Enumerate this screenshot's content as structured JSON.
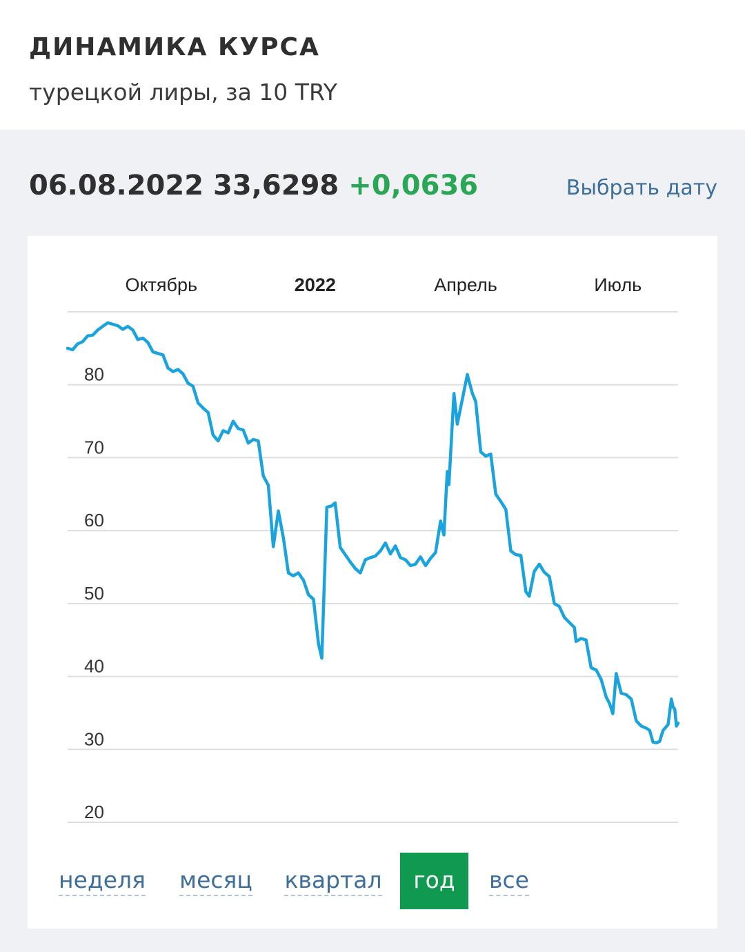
{
  "header": {
    "title": "ДИНАМИКА КУРСА",
    "subtitle": "турецкой лиры, за 10 TRY"
  },
  "rate": {
    "date": "06.08.2022",
    "value": "33,6298",
    "change": "+0,0636",
    "pick_date_label": "Выбрать дату"
  },
  "periods": {
    "week": "неделя",
    "month": "месяц",
    "quarter": "квартал",
    "year": "год",
    "all": "все",
    "selected": "год"
  },
  "colors": {
    "line": "#1aa3dc",
    "grid": "#dedede",
    "accent_green": "#0f9a4f",
    "change_green": "#2aa657",
    "link_blue": "#3d6e9c"
  },
  "chart_data": {
    "type": "line",
    "title": "",
    "xlabel": "",
    "ylabel": "",
    "ylim": [
      20,
      90
    ],
    "grid": true,
    "y_ticks": [
      20,
      30,
      40,
      50,
      60,
      70,
      80
    ],
    "x_ticks": [
      {
        "label": "Октябрь",
        "date": "2021-10-01",
        "bold": false
      },
      {
        "label": "2022",
        "date": "2022-01-01",
        "bold": true
      },
      {
        "label": "Апрель",
        "date": "2022-04-01",
        "bold": false
      },
      {
        "label": "Июль",
        "date": "2022-07-01",
        "bold": false
      }
    ],
    "x_range": [
      "2021-08-06",
      "2022-08-06"
    ],
    "series": [
      {
        "points": [
          [
            "2021-08-06",
            85.0
          ],
          [
            "2021-08-09",
            84.8
          ],
          [
            "2021-08-12",
            85.6
          ],
          [
            "2021-08-15",
            85.9
          ],
          [
            "2021-08-18",
            86.7
          ],
          [
            "2021-08-21",
            86.8
          ],
          [
            "2021-08-24",
            87.5
          ],
          [
            "2021-08-27",
            88.0
          ],
          [
            "2021-08-30",
            88.5
          ],
          [
            "2021-09-02",
            88.3
          ],
          [
            "2021-09-05",
            88.1
          ],
          [
            "2021-09-08",
            87.6
          ],
          [
            "2021-09-11",
            88.0
          ],
          [
            "2021-09-14",
            87.5
          ],
          [
            "2021-09-17",
            86.2
          ],
          [
            "2021-09-20",
            86.4
          ],
          [
            "2021-09-23",
            85.8
          ],
          [
            "2021-09-26",
            84.5
          ],
          [
            "2021-09-29",
            84.3
          ],
          [
            "2021-10-02",
            84.1
          ],
          [
            "2021-10-05",
            82.3
          ],
          [
            "2021-10-08",
            81.8
          ],
          [
            "2021-10-11",
            82.1
          ],
          [
            "2021-10-14",
            81.5
          ],
          [
            "2021-10-17",
            80.2
          ],
          [
            "2021-10-20",
            79.8
          ],
          [
            "2021-10-23",
            77.5
          ],
          [
            "2021-10-26",
            76.8
          ],
          [
            "2021-10-29",
            76.2
          ],
          [
            "2021-11-01",
            73.1
          ],
          [
            "2021-11-04",
            72.3
          ],
          [
            "2021-11-07",
            73.7
          ],
          [
            "2021-11-10",
            73.4
          ],
          [
            "2021-11-13",
            75.0
          ],
          [
            "2021-11-16",
            74.0
          ],
          [
            "2021-11-19",
            73.8
          ],
          [
            "2021-11-22",
            72.0
          ],
          [
            "2021-11-25",
            72.5
          ],
          [
            "2021-11-28",
            72.3
          ],
          [
            "2021-12-01",
            67.5
          ],
          [
            "2021-12-04",
            66.2
          ],
          [
            "2021-12-07",
            57.8
          ],
          [
            "2021-12-10",
            62.7
          ],
          [
            "2021-12-13",
            59.0
          ],
          [
            "2021-12-16",
            54.2
          ],
          [
            "2021-12-19",
            53.8
          ],
          [
            "2021-12-22",
            54.2
          ],
          [
            "2021-12-25",
            53.2
          ],
          [
            "2021-12-28",
            51.2
          ],
          [
            "2021-12-31",
            50.6
          ],
          [
            "2022-01-03",
            44.5
          ],
          [
            "2022-01-05",
            42.5
          ],
          [
            "2022-01-08",
            63.2
          ],
          [
            "2022-01-11",
            63.4
          ],
          [
            "2022-01-13",
            63.8
          ],
          [
            "2022-01-16",
            57.7
          ],
          [
            "2022-01-19",
            56.7
          ],
          [
            "2022-01-22",
            55.7
          ],
          [
            "2022-01-25",
            54.8
          ],
          [
            "2022-01-28",
            54.2
          ],
          [
            "2022-01-31",
            56.0
          ],
          [
            "2022-02-03",
            56.3
          ],
          [
            "2022-02-06",
            56.5
          ],
          [
            "2022-02-09",
            57.2
          ],
          [
            "2022-02-12",
            58.3
          ],
          [
            "2022-02-15",
            56.8
          ],
          [
            "2022-02-18",
            57.9
          ],
          [
            "2022-02-21",
            56.3
          ],
          [
            "2022-02-24",
            56.0
          ],
          [
            "2022-02-27",
            55.2
          ],
          [
            "2022-03-02",
            55.4
          ],
          [
            "2022-03-05",
            56.4
          ],
          [
            "2022-03-08",
            55.2
          ],
          [
            "2022-03-11",
            56.2
          ],
          [
            "2022-03-14",
            57.0
          ],
          [
            "2022-03-17",
            61.3
          ],
          [
            "2022-03-19",
            59.4
          ],
          [
            "2022-03-21",
            68.1
          ],
          [
            "2022-03-22",
            66.3
          ],
          [
            "2022-03-25",
            78.8
          ],
          [
            "2022-03-27",
            74.6
          ],
          [
            "2022-03-30",
            78.0
          ],
          [
            "2022-04-02",
            81.4
          ],
          [
            "2022-04-05",
            78.8
          ],
          [
            "2022-04-07",
            77.7
          ],
          [
            "2022-04-10",
            70.8
          ],
          [
            "2022-04-13",
            70.2
          ],
          [
            "2022-04-16",
            70.5
          ],
          [
            "2022-04-19",
            65.0
          ],
          [
            "2022-04-22",
            64.0
          ],
          [
            "2022-04-25",
            62.9
          ],
          [
            "2022-04-28",
            57.2
          ],
          [
            "2022-05-01",
            56.7
          ],
          [
            "2022-05-04",
            56.6
          ],
          [
            "2022-05-07",
            51.6
          ],
          [
            "2022-05-09",
            51.0
          ],
          [
            "2022-05-12",
            54.4
          ],
          [
            "2022-05-15",
            55.4
          ],
          [
            "2022-05-18",
            54.3
          ],
          [
            "2022-05-21",
            53.7
          ],
          [
            "2022-05-24",
            50.0
          ],
          [
            "2022-05-27",
            49.6
          ],
          [
            "2022-05-30",
            48.1
          ],
          [
            "2022-06-02",
            47.4
          ],
          [
            "2022-06-05",
            46.7
          ],
          [
            "2022-06-06",
            44.8
          ],
          [
            "2022-06-09",
            45.2
          ],
          [
            "2022-06-12",
            45.0
          ],
          [
            "2022-06-15",
            41.2
          ],
          [
            "2022-06-18",
            40.9
          ],
          [
            "2022-06-21",
            39.6
          ],
          [
            "2022-06-24",
            37.2
          ],
          [
            "2022-06-26",
            36.3
          ],
          [
            "2022-06-28",
            34.9
          ],
          [
            "2022-06-30",
            40.4
          ],
          [
            "2022-07-03",
            37.7
          ],
          [
            "2022-07-06",
            37.5
          ],
          [
            "2022-07-09",
            36.9
          ],
          [
            "2022-07-12",
            33.9
          ],
          [
            "2022-07-15",
            33.2
          ],
          [
            "2022-07-18",
            32.9
          ],
          [
            "2022-07-20",
            32.6
          ],
          [
            "2022-07-22",
            31.0
          ],
          [
            "2022-07-24",
            30.9
          ],
          [
            "2022-07-26",
            31.1
          ],
          [
            "2022-07-28",
            32.6
          ],
          [
            "2022-07-31",
            33.4
          ],
          [
            "2022-08-02",
            36.9
          ],
          [
            "2022-08-03",
            35.8
          ],
          [
            "2022-08-04",
            35.5
          ],
          [
            "2022-08-05",
            33.2
          ],
          [
            "2022-08-06",
            33.6
          ]
        ]
      }
    ]
  }
}
